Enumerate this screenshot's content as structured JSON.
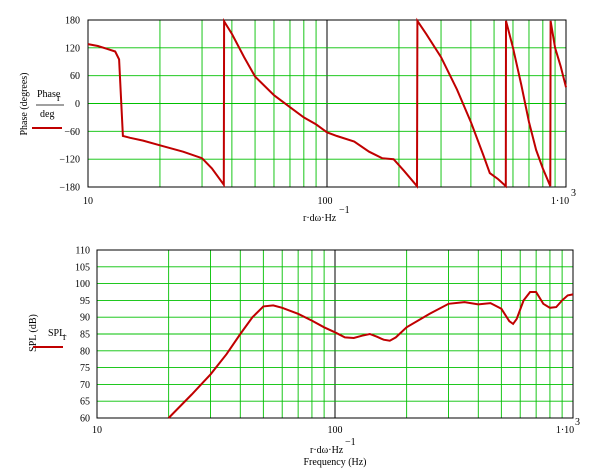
{
  "chart_data": [
    {
      "type": "line",
      "ylabel": "Phase (degrees)",
      "legend_label_main": "Phase",
      "legend_label_sub": "r",
      "legend_label_den": "deg",
      "xlabel_main": "r·dω·Hz",
      "xlabel_exp": "−1",
      "xscale": "log",
      "xlim": [
        10,
        1000
      ],
      "ylim": [
        -180,
        180
      ],
      "x_tick_labels": [
        "10",
        "100",
        "1·10"
      ],
      "x_tick_last_exp": "3",
      "y_ticks": [
        180,
        120,
        60,
        0,
        -60,
        -120,
        -180
      ],
      "y_tick_labels": [
        "180",
        "120",
        "60",
        "0",
        "−60",
        "−120",
        "−180"
      ],
      "grid": true,
      "line_color": "#c00000",
      "grid_color": "#00c000",
      "series": [
        {
          "values_xy": [
            [
              10,
              128
            ],
            [
              11,
              124
            ],
            [
              12,
              118
            ],
            [
              13,
              112
            ],
            [
              13.5,
              95
            ],
            [
              14,
              -70
            ],
            [
              15,
              -74
            ],
            [
              17,
              -80
            ],
            [
              20,
              -90
            ],
            [
              25,
              -104
            ],
            [
              30,
              -118
            ],
            [
              33,
              -140
            ],
            [
              37,
              -175
            ],
            [
              37.1,
              177
            ],
            [
              40,
              150
            ],
            [
              45,
              100
            ],
            [
              50,
              58
            ],
            [
              60,
              18
            ],
            [
              70,
              -8
            ],
            [
              80,
              -30
            ],
            [
              90,
              -45
            ],
            [
              100,
              -62
            ],
            [
              110,
              -70
            ],
            [
              130,
              -82
            ],
            [
              150,
              -104
            ],
            [
              170,
              -118
            ],
            [
              190,
              -120
            ],
            [
              210,
              -145
            ],
            [
              238,
              -178
            ],
            [
              239,
              178
            ],
            [
              260,
              150
            ],
            [
              300,
              100
            ],
            [
              350,
              30
            ],
            [
              400,
              -40
            ],
            [
              450,
              -110
            ],
            [
              480,
              -150
            ],
            [
              520,
              -163
            ],
            [
              560,
              -178
            ],
            [
              561,
              178
            ],
            [
              600,
              120
            ],
            [
              650,
              40
            ],
            [
              700,
              -40
            ],
            [
              750,
              -100
            ],
            [
              800,
              -140
            ],
            [
              860,
              -178
            ],
            [
              862,
              178
            ],
            [
              900,
              120
            ],
            [
              950,
              80
            ],
            [
              1000,
              35
            ]
          ]
        }
      ]
    },
    {
      "type": "line",
      "ylabel": "SPL (dB)",
      "legend_label_main": "SPL",
      "legend_label_sub": "r",
      "xlabel_main": "r·dω·Hz",
      "xlabel_exp": "−1",
      "xlabel2": "Frequency (Hz)",
      "xscale": "log",
      "xlim": [
        10,
        1000
      ],
      "ylim": [
        60,
        110
      ],
      "x_tick_labels": [
        "10",
        "100",
        "1·10"
      ],
      "x_tick_last_exp": "3",
      "y_ticks": [
        110,
        105,
        100,
        95,
        90,
        85,
        80,
        75,
        70,
        65,
        60
      ],
      "y_tick_labels": [
        "110",
        "105",
        "100",
        "95",
        "90",
        "85",
        "80",
        "75",
        "70",
        "65",
        "60"
      ],
      "grid": true,
      "line_color": "#c00000",
      "grid_color": "#00c000",
      "series": [
        {
          "values_xy": [
            [
              20,
              60
            ],
            [
              25,
              67
            ],
            [
              30,
              73
            ],
            [
              35,
              79
            ],
            [
              40,
              85
            ],
            [
              45,
              90
            ],
            [
              50,
              93.2
            ],
            [
              55,
              93.5
            ],
            [
              60,
              92.8
            ],
            [
              70,
              91
            ],
            [
              80,
              89
            ],
            [
              90,
              87
            ],
            [
              100,
              85.5
            ],
            [
              110,
              84
            ],
            [
              120,
              83.8
            ],
            [
              130,
              84.5
            ],
            [
              140,
              85
            ],
            [
              150,
              84.2
            ],
            [
              160,
              83.3
            ],
            [
              170,
              83
            ],
            [
              180,
              84
            ],
            [
              200,
              87
            ],
            [
              250,
              91
            ],
            [
              300,
              94
            ],
            [
              350,
              94.5
            ],
            [
              400,
              93.8
            ],
            [
              450,
              94.2
            ],
            [
              500,
              92.5
            ],
            [
              540,
              88.8
            ],
            [
              560,
              88
            ],
            [
              580,
              89.5
            ],
            [
              620,
              95
            ],
            [
              660,
              97.5
            ],
            [
              700,
              97.5
            ],
            [
              750,
              94
            ],
            [
              800,
              92.8
            ],
            [
              850,
              93
            ],
            [
              900,
              95
            ],
            [
              950,
              96.5
            ],
            [
              1000,
              96.8
            ]
          ]
        }
      ]
    }
  ]
}
